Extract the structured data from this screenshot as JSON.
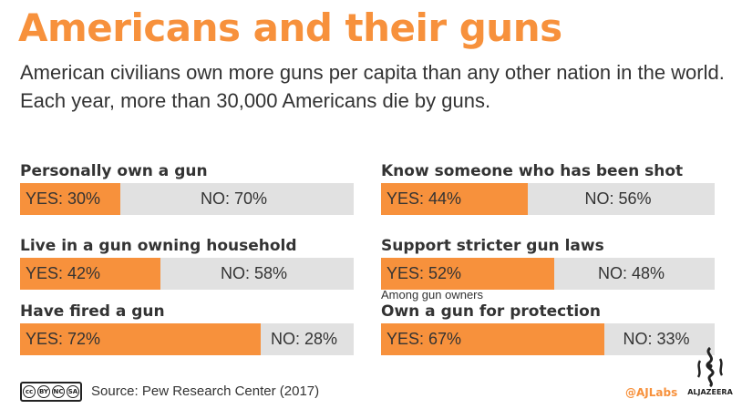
{
  "header": {
    "title": "Americans and their guns",
    "subtitle": "American civilians own more guns per capita than any other nation in the world. Each year, more than 30,000 Americans die by guns."
  },
  "colors": {
    "yes": "#f7913c",
    "no": "#e1e1e1",
    "title": "#f7913c",
    "text": "#333333"
  },
  "chart_data": {
    "type": "bar",
    "title": "Americans and their guns",
    "subtitle": "American civilians own more guns per capita than any other nation in the world. Each year, more than 30,000 Americans die by guns.",
    "series": [
      {
        "name": "YES",
        "values": [
          30,
          42,
          72,
          44,
          52,
          67
        ]
      },
      {
        "name": "NO",
        "values": [
          70,
          58,
          28,
          56,
          48,
          33
        ]
      }
    ],
    "categories": [
      "Personally own a gun",
      "Live in a gun owning household",
      "Have fired a gun",
      "Know someone who has been shot",
      "Support stricter gun laws",
      "Own a gun for protection"
    ],
    "items": [
      {
        "label": "Personally own a gun",
        "note": "",
        "yes": 30,
        "no": 70,
        "yes_text": "YES: 30%",
        "no_text": "NO: 70%"
      },
      {
        "label": "Live in a gun owning household",
        "note": "",
        "yes": 42,
        "no": 58,
        "yes_text": "YES: 42%",
        "no_text": "NO: 58%"
      },
      {
        "label": "Have fired a gun",
        "note": "",
        "yes": 72,
        "no": 28,
        "yes_text": "YES: 72%",
        "no_text": "NO: 28%"
      },
      {
        "label": "Know someone who has been shot",
        "note": "",
        "yes": 44,
        "no": 56,
        "yes_text": "YES: 44%",
        "no_text": "NO: 56%"
      },
      {
        "label": "Support stricter gun laws",
        "note": "",
        "yes": 52,
        "no": 48,
        "yes_text": "YES: 52%",
        "no_text": "NO: 48%"
      },
      {
        "label": "Own a gun for protection",
        "note": "Among gun owners",
        "yes": 67,
        "no": 33,
        "yes_text": "YES: 67%",
        "no_text": "NO: 33%"
      }
    ],
    "stacked": true,
    "xlim": [
      0,
      100
    ]
  },
  "footer": {
    "license_icon": "creative-commons-by-nc-sa-icon",
    "license_text": [
      "BY",
      "NC",
      "SA"
    ],
    "source": "Source: Pew Research Center (2017)",
    "handle": "@AJLabs",
    "brand": "ALJAZEERA",
    "brand_icon": "al-jazeera-logo-icon"
  }
}
